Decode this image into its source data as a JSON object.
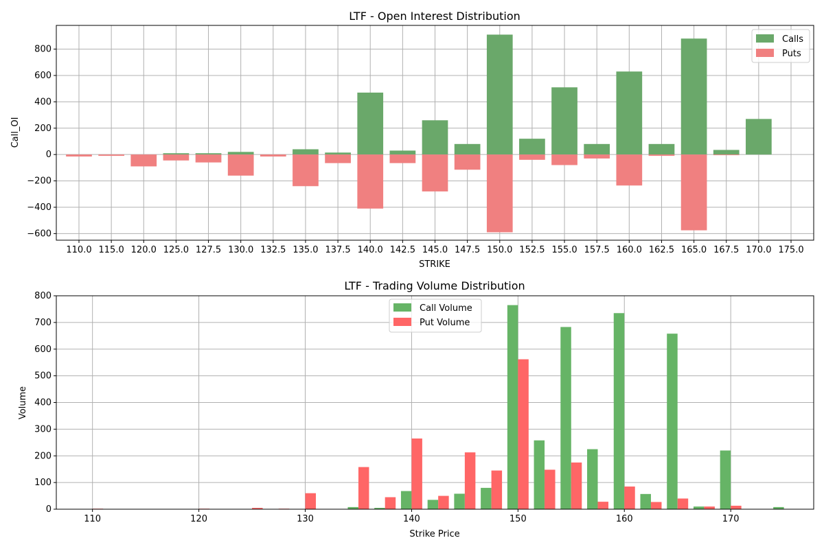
{
  "colors": {
    "oi_calls": "#6aa86a",
    "oi_puts": "#f08080",
    "vol_calls": "#66b466",
    "vol_puts": "#ff6666",
    "grid": "#b0b0b0"
  },
  "chart_data": [
    {
      "type": "bar",
      "title": "LTF - Open Interest Distribution",
      "xlabel": "STRIKE",
      "ylabel": "Call_OI",
      "categories": [
        "110.0",
        "115.0",
        "120.0",
        "125.0",
        "127.5",
        "130.0",
        "132.5",
        "135.0",
        "137.5",
        "140.0",
        "142.5",
        "145.0",
        "147.5",
        "150.0",
        "152.5",
        "155.0",
        "157.5",
        "160.0",
        "162.5",
        "165.0",
        "167.5",
        "170.0",
        "175.0"
      ],
      "ylim": [
        -650,
        980
      ],
      "yticks": [
        "800",
        "600",
        "400",
        "200",
        "0",
        "−200",
        "−400",
        "−600"
      ],
      "ytick_values": [
        800,
        600,
        400,
        200,
        0,
        -200,
        -400,
        -600
      ],
      "grid": true,
      "legend": "top-right",
      "series": [
        {
          "name": "Calls",
          "values": [
            0,
            0,
            0,
            10,
            10,
            20,
            0,
            40,
            15,
            470,
            30,
            260,
            80,
            910,
            120,
            510,
            80,
            630,
            80,
            880,
            35,
            270,
            0
          ]
        },
        {
          "name": "Puts",
          "values": [
            -15,
            -10,
            -90,
            -45,
            -60,
            -160,
            -15,
            -240,
            -65,
            -410,
            -65,
            -280,
            -115,
            -590,
            -40,
            -80,
            -30,
            -235,
            -10,
            -575,
            -5,
            0,
            0
          ]
        }
      ]
    },
    {
      "type": "bar",
      "title": "LTF - Trading Volume Distribution",
      "xlabel": "Strike Price",
      "ylabel": "Volume",
      "x": [
        110,
        115,
        120,
        125,
        127.5,
        130,
        132.5,
        135,
        137.5,
        140,
        142.5,
        145,
        147.5,
        150,
        152.5,
        155,
        157.5,
        160,
        162.5,
        165,
        167.5,
        170,
        175
      ],
      "xlim": [
        106.6,
        177.8
      ],
      "xticks": [
        110,
        120,
        130,
        140,
        150,
        160,
        170
      ],
      "xtick_labels": [
        "110",
        "120",
        "130",
        "140",
        "150",
        "160",
        "170"
      ],
      "ylim": [
        0,
        800
      ],
      "yticks": [
        0,
        100,
        200,
        300,
        400,
        500,
        600,
        700,
        800
      ],
      "ytick_labels": [
        "0",
        "100",
        "200",
        "300",
        "400",
        "500",
        "600",
        "700",
        "800"
      ],
      "grid": true,
      "legend": "top-center",
      "series": [
        {
          "name": "Call Volume",
          "values": [
            0,
            0,
            0,
            0,
            0,
            0,
            0,
            8,
            5,
            68,
            35,
            58,
            80,
            765,
            258,
            683,
            225,
            735,
            57,
            658,
            10,
            220,
            8
          ]
        },
        {
          "name": "Put Volume",
          "values": [
            2,
            0,
            2,
            5,
            2,
            60,
            0,
            158,
            45,
            265,
            50,
            213,
            145,
            562,
            148,
            175,
            28,
            85,
            27,
            40,
            10,
            13,
            0
          ]
        }
      ]
    }
  ]
}
